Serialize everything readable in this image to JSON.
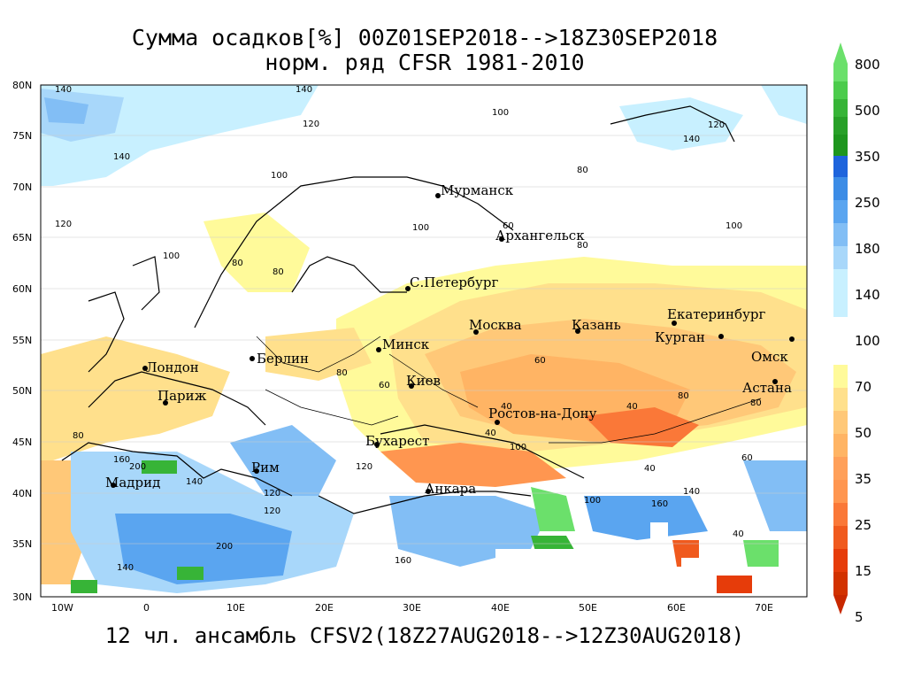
{
  "title_line1": "Сумма осадков[%] 00Z01SEP2018-->18Z30SEP2018",
  "title_line2": "норм. ряд CFSR 1981-2010",
  "subtitle": "12 чл. ансамбль CFSV2(18Z27AUG2018-->12Z30AUG2018)",
  "lat_labels": [
    "80N",
    "75N",
    "70N",
    "65N",
    "60N",
    "55N",
    "50N",
    "45N",
    "40N",
    "35N",
    "30N"
  ],
  "lon_labels": [
    "10W",
    "0",
    "10E",
    "20E",
    "30E",
    "40E",
    "50E",
    "60E",
    "70E"
  ],
  "colorbar": {
    "upper_labels": [
      "800",
      "500",
      "350",
      "250",
      "180",
      "140"
    ],
    "middle_label": "100",
    "lower_labels": [
      "70",
      "50",
      "35",
      "25",
      "15",
      "5"
    ],
    "upper_colors": [
      "#6be06b",
      "#37b437",
      "#1e961e",
      "#1e64dc",
      "#3c8ce6",
      "#5aa5f0",
      "#82bef5",
      "#a8d7fa",
      "#c8f0ff"
    ],
    "lower_colors": [
      "#fffa9a",
      "#ffe08c",
      "#ffc878",
      "#ffb464",
      "#ff9650",
      "#fa7838",
      "#f05a1e",
      "#e63c0a",
      "#c82800"
    ]
  },
  "cities": [
    {
      "name": "Мурманск"
    },
    {
      "name": "Архангельск"
    },
    {
      "name": "С.Петербург"
    },
    {
      "name": "Москва"
    },
    {
      "name": "Казань"
    },
    {
      "name": "Екатеринбург"
    },
    {
      "name": "Курган"
    },
    {
      "name": "Омск"
    },
    {
      "name": "Астана"
    },
    {
      "name": "Минск"
    },
    {
      "name": "Киев"
    },
    {
      "name": "Берлин"
    },
    {
      "name": "Лондон"
    },
    {
      "name": "Париж"
    },
    {
      "name": "Ростов-на-Дону"
    },
    {
      "name": "Бухарест"
    },
    {
      "name": "Рим"
    },
    {
      "name": "Мадрид"
    },
    {
      "name": "Анкара"
    }
  ],
  "contour_values": [
    "140",
    "140",
    "120",
    "140",
    "100",
    "120",
    "100",
    "80",
    "100",
    "80",
    "80",
    "100",
    "80",
    "60",
    "80",
    "60",
    "40",
    "40",
    "40",
    "100",
    "120",
    "140",
    "160",
    "200",
    "120",
    "160",
    "200",
    "140",
    "80",
    "60",
    "40",
    "100",
    "120",
    "140",
    "80",
    "40",
    "60",
    "80",
    "100",
    "120",
    "140",
    "160"
  ]
}
